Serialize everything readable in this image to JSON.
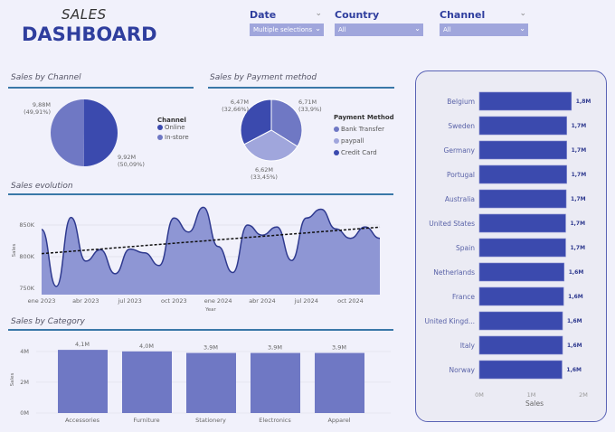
{
  "header": {
    "title_top": "SALES",
    "title_main": "DASHBOARD"
  },
  "filters": [
    {
      "label": "Date",
      "value": "Multiple selections"
    },
    {
      "label": "Country",
      "value": "All"
    },
    {
      "label": "Channel",
      "value": "All"
    }
  ],
  "colors": {
    "dark": "#3b4aae",
    "medium": "#6f78c4",
    "light": "#a0a6dc",
    "area": "#8e96d4",
    "accent_rule": "#3a78a8"
  },
  "chart_data": [
    {
      "id": "channel",
      "type": "pie",
      "title": "Sales by Channel",
      "legend_title": "Channel",
      "slices": [
        {
          "name": "Online",
          "value": 9.92,
          "label": "9,92M",
          "pct": "(50,09%)",
          "color": "#3b4aae"
        },
        {
          "name": "In-store",
          "value": 9.88,
          "label": "9,88M",
          "pct": "(49,91%)",
          "color": "#6f78c4"
        }
      ]
    },
    {
      "id": "payment",
      "type": "pie",
      "title": "Sales by Payment method",
      "legend_title": "Payment Method",
      "slices": [
        {
          "name": "Bank Transfer",
          "value": 6.71,
          "label": "6,71M",
          "pct": "(33,9%)",
          "color": "#6f78c4"
        },
        {
          "name": "paypall",
          "value": 6.62,
          "label": "6,62M",
          "pct": "(33,45%)",
          "color": "#a0a6dc"
        },
        {
          "name": "Credit Card",
          "value": 6.47,
          "label": "6,47M",
          "pct": "(32,66%)",
          "color": "#3b4aae"
        }
      ]
    },
    {
      "id": "evolution",
      "type": "area",
      "title": "Sales evolution",
      "xlabel": "Year",
      "ylabel": "Sales",
      "ylim": [
        740,
        880
      ],
      "yticks": [
        {
          "v": 750,
          "label": "750K"
        },
        {
          "v": 800,
          "label": "800K"
        },
        {
          "v": 850,
          "label": "850K"
        }
      ],
      "xticks": [
        {
          "i": 0,
          "label": "ene 2023"
        },
        {
          "i": 3,
          "label": "abr 2023"
        },
        {
          "i": 6,
          "label": "jul 2023"
        },
        {
          "i": 9,
          "label": "oct 2023"
        },
        {
          "i": 12,
          "label": "ene 2024"
        },
        {
          "i": 15,
          "label": "abr 2024"
        },
        {
          "i": 18,
          "label": "jul 2024"
        },
        {
          "i": 21,
          "label": "oct 2024"
        }
      ],
      "values": [
        843,
        753,
        862,
        793,
        811,
        773,
        812,
        806,
        786,
        861,
        839,
        878,
        816,
        775,
        850,
        834,
        847,
        794,
        861,
        875,
        844,
        829,
        847,
        829
      ],
      "trend": true
    },
    {
      "id": "category",
      "type": "bar",
      "title": "Sales by Category",
      "ylabel": "Sales",
      "ylim": [
        0,
        4.4
      ],
      "yticks": [
        {
          "v": 0,
          "label": "0M"
        },
        {
          "v": 2,
          "label": "2M"
        },
        {
          "v": 4,
          "label": "4M"
        }
      ],
      "categories": [
        "Accessories",
        "Furniture",
        "Stationery",
        "Electronics",
        "Apparel"
      ],
      "values": [
        4.1,
        4.0,
        3.9,
        3.9,
        3.9
      ],
      "labels": [
        "4,1M",
        "4,0M",
        "3,9M",
        "3,9M",
        "3,9M"
      ]
    },
    {
      "id": "country",
      "type": "hbar",
      "xlabel": "Sales",
      "xlim": [
        0,
        2
      ],
      "xticks": [
        {
          "v": 0,
          "label": "0M"
        },
        {
          "v": 1,
          "label": "1M"
        },
        {
          "v": 2,
          "label": "2M"
        }
      ],
      "categories": [
        "Belgium",
        "Sweden",
        "Germany",
        "Portugal",
        "Australia",
        "United States",
        "Spain",
        "Netherlands",
        "France",
        "United Kingd...",
        "Italy",
        "Norway"
      ],
      "values": [
        1.77,
        1.68,
        1.68,
        1.68,
        1.67,
        1.66,
        1.66,
        1.63,
        1.62,
        1.6,
        1.6,
        1.59
      ],
      "labels": [
        "1,8M",
        "1,7M",
        "1,7M",
        "1,7M",
        "1,7M",
        "1,7M",
        "1,7M",
        "1,6M",
        "1,6M",
        "1,6M",
        "1,6M",
        "1,6M"
      ]
    }
  ]
}
